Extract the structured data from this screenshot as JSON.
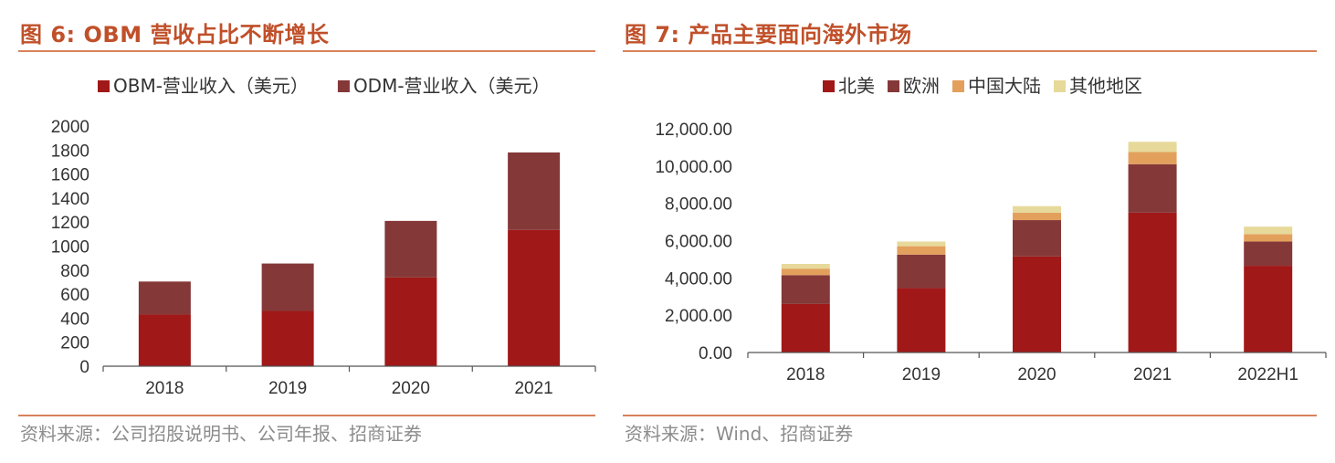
{
  "left": {
    "title": "图 6:  OBM 营收占比不断增长",
    "source": "资料来源：公司招股说明书、公司年报、招商证券",
    "chart_data": {
      "type": "bar",
      "stacked": true,
      "categories": [
        "2018",
        "2019",
        "2020",
        "2021"
      ],
      "series": [
        {
          "name": "OBM-营业收入（美元）",
          "color": "#a11818",
          "values": [
            430,
            460,
            740,
            1135
          ]
        },
        {
          "name": "ODM-营业收入（美元）",
          "color": "#853838",
          "values": [
            275,
            395,
            470,
            645
          ]
        }
      ],
      "ylim": [
        0,
        2000
      ],
      "yticks": [
        "0",
        "200",
        "400",
        "600",
        "800",
        "1000",
        "1200",
        "1400",
        "1600",
        "1800",
        "2000"
      ],
      "legend": "top",
      "grid": false
    }
  },
  "right": {
    "title": "图 7:  产品主要面向海外市场",
    "source": "资料来源：Wind、招商证券",
    "chart_data": {
      "type": "bar",
      "stacked": true,
      "categories": [
        "2018",
        "2019",
        "2020",
        "2021",
        "2022H1"
      ],
      "series": [
        {
          "name": "北美",
          "color": "#a11818",
          "values": [
            2600,
            3450,
            5150,
            7500,
            4650
          ]
        },
        {
          "name": "欧洲",
          "color": "#853838",
          "values": [
            1550,
            1800,
            1950,
            2600,
            1300
          ]
        },
        {
          "name": "中国大陆",
          "color": "#e3a05c",
          "values": [
            350,
            450,
            400,
            650,
            400
          ]
        },
        {
          "name": "其他地区",
          "color": "#e6d99a",
          "values": [
            250,
            250,
            350,
            550,
            400
          ]
        }
      ],
      "ylim": [
        0,
        12000
      ],
      "yticks": [
        "0.00",
        "2,000.00",
        "4,000.00",
        "6,000.00",
        "8,000.00",
        "10,000.00",
        "12,000.00"
      ],
      "legend": "top",
      "grid": false
    }
  }
}
